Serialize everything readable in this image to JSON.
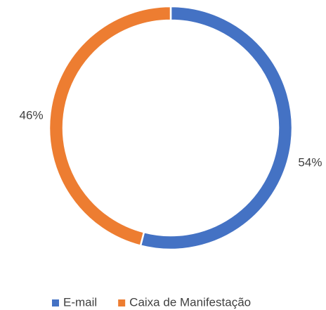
{
  "chart_data": {
    "type": "donut",
    "categories": [
      "E-mail",
      "Caixa de Manifestação"
    ],
    "values": [
      54,
      46
    ],
    "value_labels": [
      "54%",
      "46%"
    ],
    "colors": [
      "#4472c4",
      "#ed7d31"
    ]
  }
}
